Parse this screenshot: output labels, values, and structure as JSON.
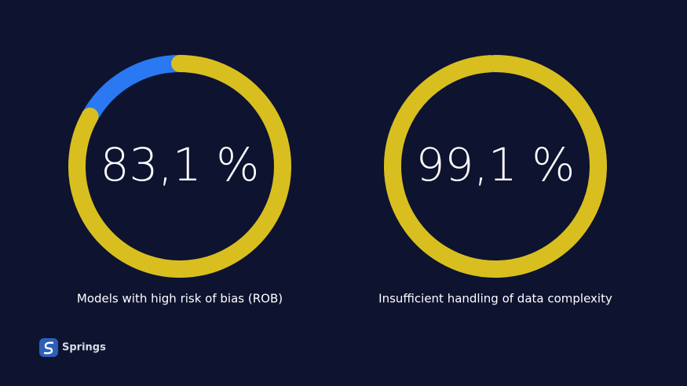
{
  "chart_data": [
    {
      "type": "donut",
      "title": "Models with high risk of bias (ROB)",
      "values": [
        83.1,
        16.9
      ],
      "value_labels": [
        "83,1 %",
        null
      ],
      "colors": [
        "#d8bf1f",
        "#2a78f2"
      ]
    },
    {
      "type": "donut",
      "title": "Insufficient handling of data complexity",
      "values": [
        99.1,
        0.9
      ],
      "value_labels": [
        "99,1 %",
        null
      ],
      "colors": [
        "#d8bf1f",
        "#2a78f2"
      ]
    }
  ],
  "brand": "Springs"
}
